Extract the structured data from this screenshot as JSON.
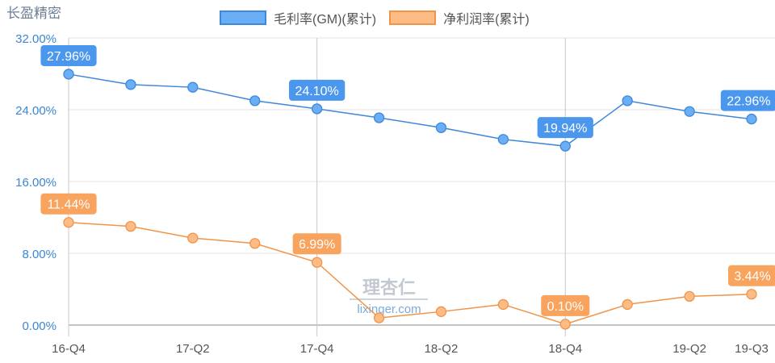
{
  "header": {
    "title": "长盈精密"
  },
  "legend": [
    {
      "label": "毛利率(GM)(累计)",
      "color": "#6aaef5",
      "border": "#3f87d9"
    },
    {
      "label": "净利润率(累计)",
      "color": "#fdbb86",
      "border": "#f09448"
    }
  ],
  "watermark": {
    "cn": "理杏仁",
    "url": "lixinger.com"
  },
  "chart_data": {
    "type": "line",
    "title": "长盈精密",
    "xlabel": "",
    "ylabel": "",
    "ylim": [
      0,
      32
    ],
    "yticks": [
      "0.00%",
      "8.00%",
      "16.00%",
      "24.00%",
      "32.00%"
    ],
    "x": [
      "16-Q4",
      "17-Q1",
      "17-Q2",
      "17-Q3",
      "17-Q4",
      "18-Q1",
      "18-Q2",
      "18-Q3",
      "18-Q4",
      "19-Q1",
      "19-Q2",
      "19-Q3"
    ],
    "xtick_labels": [
      "16-Q4",
      "17-Q2",
      "17-Q4",
      "18-Q2",
      "18-Q4",
      "19-Q2",
      "19-Q3"
    ],
    "grid": true,
    "legend_position": "top",
    "series": [
      {
        "name": "毛利率(GM)(累计)",
        "color": "#3f87d9",
        "values": [
          27.96,
          26.8,
          26.5,
          25.0,
          24.1,
          23.1,
          22.0,
          20.7,
          19.94,
          25.0,
          23.8,
          22.96
        ],
        "labels": {
          "0": "27.96%",
          "4": "24.10%",
          "8": "19.94%",
          "11": "22.96%"
        }
      },
      {
        "name": "净利润率(累计)",
        "color": "#f09448",
        "values": [
          11.44,
          11.0,
          9.7,
          9.1,
          6.99,
          0.8,
          1.5,
          2.3,
          0.1,
          2.3,
          3.2,
          3.44
        ],
        "labels": {
          "0": "11.44%",
          "4": "6.99%",
          "8": "0.10%",
          "11": "3.44%"
        }
      }
    ]
  }
}
